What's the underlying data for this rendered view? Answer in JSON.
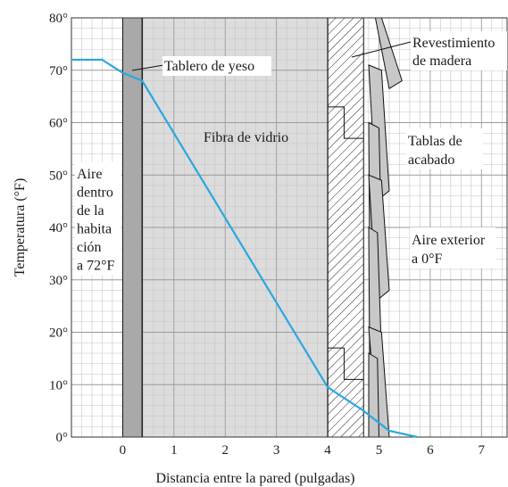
{
  "chart_data": {
    "type": "line",
    "xlabel": "Distancia entre la pared (pulgadas)",
    "ylabel": "Temperatura (°F)",
    "xlim": [
      -1,
      7.5
    ],
    "ylim": [
      0,
      80
    ],
    "grid": true,
    "x_ticks": [
      {
        "value": 0,
        "label": "0"
      },
      {
        "value": 1,
        "label": "1"
      },
      {
        "value": 2,
        "label": "2"
      },
      {
        "value": 3,
        "label": "3"
      },
      {
        "value": 4,
        "label": "4"
      },
      {
        "value": 5,
        "label": "5"
      },
      {
        "value": 6,
        "label": "6"
      },
      {
        "value": 7,
        "label": "7"
      }
    ],
    "y_ticks": [
      {
        "value": 0,
        "label": "0°"
      },
      {
        "value": 10,
        "label": "10°"
      },
      {
        "value": 20,
        "label": "20°"
      },
      {
        "value": 30,
        "label": "30°"
      },
      {
        "value": 40,
        "label": "40°"
      },
      {
        "value": 50,
        "label": "50°"
      },
      {
        "value": 60,
        "label": "60°"
      },
      {
        "value": 70,
        "label": "70°"
      },
      {
        "value": 80,
        "label": "80°"
      }
    ],
    "series": [
      {
        "color": "#29a8e0",
        "points": [
          {
            "x": -1.0,
            "y": 72
          },
          {
            "x": -0.4,
            "y": 72
          },
          {
            "x": 0.0,
            "y": 69.5
          },
          {
            "x": 0.38,
            "y": 68
          },
          {
            "x": 4.0,
            "y": 9.5
          },
          {
            "x": 4.7,
            "y": 5
          },
          {
            "x": 5.2,
            "y": 1.2
          },
          {
            "x": 5.75,
            "y": 0
          }
        ]
      }
    ],
    "layers": {
      "gypsum_x": [
        0,
        0.38
      ],
      "fiberglass_x": [
        0.38,
        4.0
      ],
      "sheathing_x": [
        4.0,
        4.7
      ],
      "gypsum_color": "#a9a9a9",
      "fiberglass_color": "#dcdcdc",
      "siding_color": "#c8c8c8"
    },
    "annotations": {
      "tablero": "Tablero de yeso",
      "revestimiento": [
        "Revestimiento",
        "de madera"
      ],
      "fibra": "Fibra de vidrio",
      "tablas": [
        "Tablas de",
        "acabado"
      ],
      "aire_exterior": [
        "Aire exterior",
        "a 0°F"
      ],
      "aire_dentro": [
        "Aire",
        "dentro",
        "de la",
        "habita",
        "ción",
        "a 72°F"
      ]
    }
  }
}
